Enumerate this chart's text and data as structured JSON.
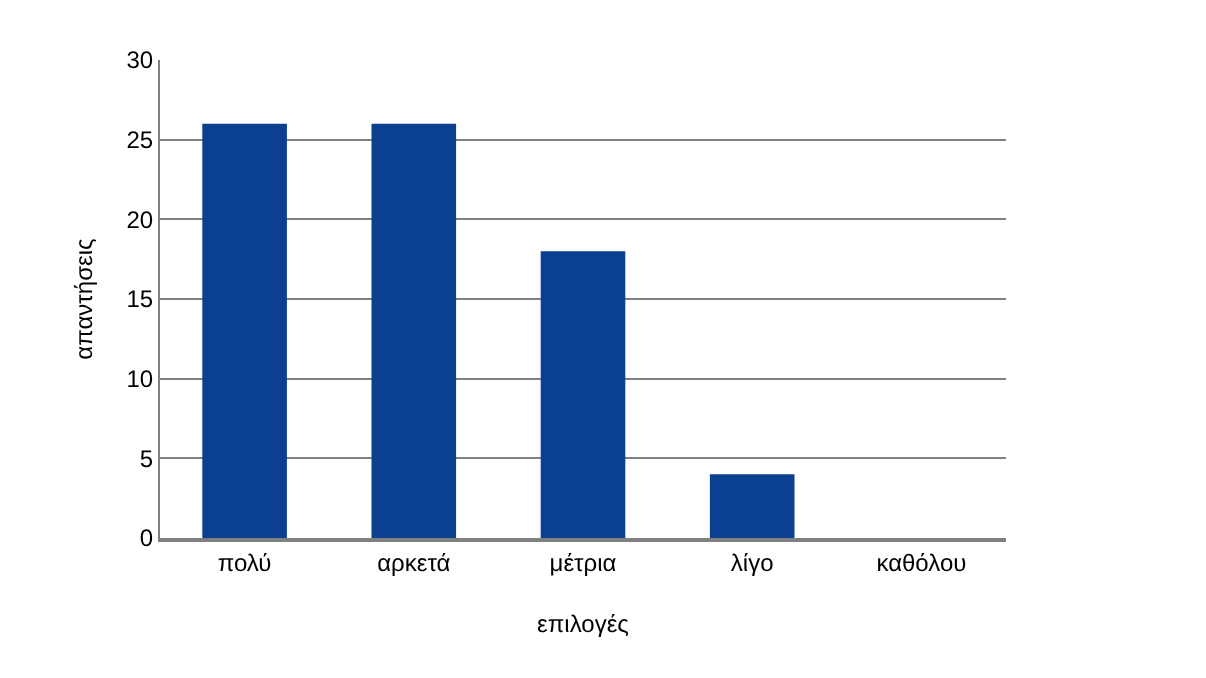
{
  "chart_data": {
    "type": "bar",
    "xlabel": "επιλογές",
    "ylabel": "απαντήσεις",
    "categories": [
      "πολύ",
      "αρκετά",
      "μέτρια",
      "λίγο",
      "καθόλου"
    ],
    "values": [
      26,
      26,
      18,
      4,
      0
    ],
    "color": "#0b3f8f",
    "ylim": [
      0,
      30
    ],
    "yticks": [
      0,
      5,
      10,
      15,
      20,
      25,
      30
    ],
    "grid": "y"
  }
}
